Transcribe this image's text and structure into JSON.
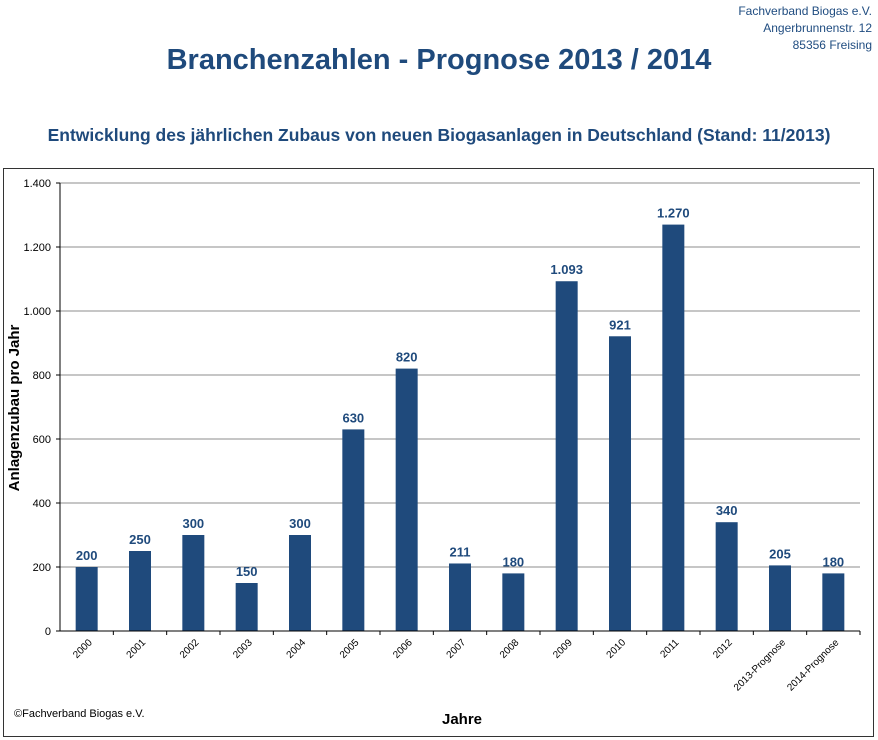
{
  "header": {
    "address_lines": [
      "Fachverband Biogas e.V.",
      "Angerbrunnenstr. 12",
      "85356 Freising"
    ],
    "title": "Branchenzahlen - Prognose 2013 / 2014",
    "subtitle": "Entwicklung des jährlichen Zubaus von neuen Biogasanlagen in Deutschland (Stand: 11/2013)"
  },
  "footer": {
    "copyright": "©Fachverband Biogas e.V."
  },
  "colors": {
    "bar": "#1f4a7c",
    "label": "#1f4a7c",
    "grid": "#8c8c8c",
    "axis": "#000000"
  },
  "chart_data": {
    "type": "bar",
    "categories": [
      "2000",
      "2001",
      "2002",
      "2003",
      "2004",
      "2005",
      "2006",
      "2007",
      "2008",
      "2009",
      "2010",
      "2011",
      "2012",
      "2013-Prognose",
      "2014-Prognose"
    ],
    "values": [
      200,
      250,
      300,
      150,
      300,
      630,
      820,
      211,
      180,
      1093,
      921,
      1270,
      340,
      205,
      180
    ],
    "value_labels": [
      "200",
      "250",
      "300",
      "150",
      "300",
      "630",
      "820",
      "211",
      "180",
      "1.093",
      "921",
      "1.270",
      "340",
      "205",
      "180"
    ],
    "xlabel": "Jahre",
    "ylabel": "Anlagenzubau pro Jahr",
    "ylim": [
      0,
      1400
    ],
    "yticks": [
      0,
      200,
      400,
      600,
      800,
      1000,
      1200,
      1400
    ],
    "ytick_labels": [
      "0",
      "200",
      "400",
      "600",
      "800",
      "1.000",
      "1.200",
      "1.400"
    ],
    "grid": true,
    "legend": "none"
  }
}
